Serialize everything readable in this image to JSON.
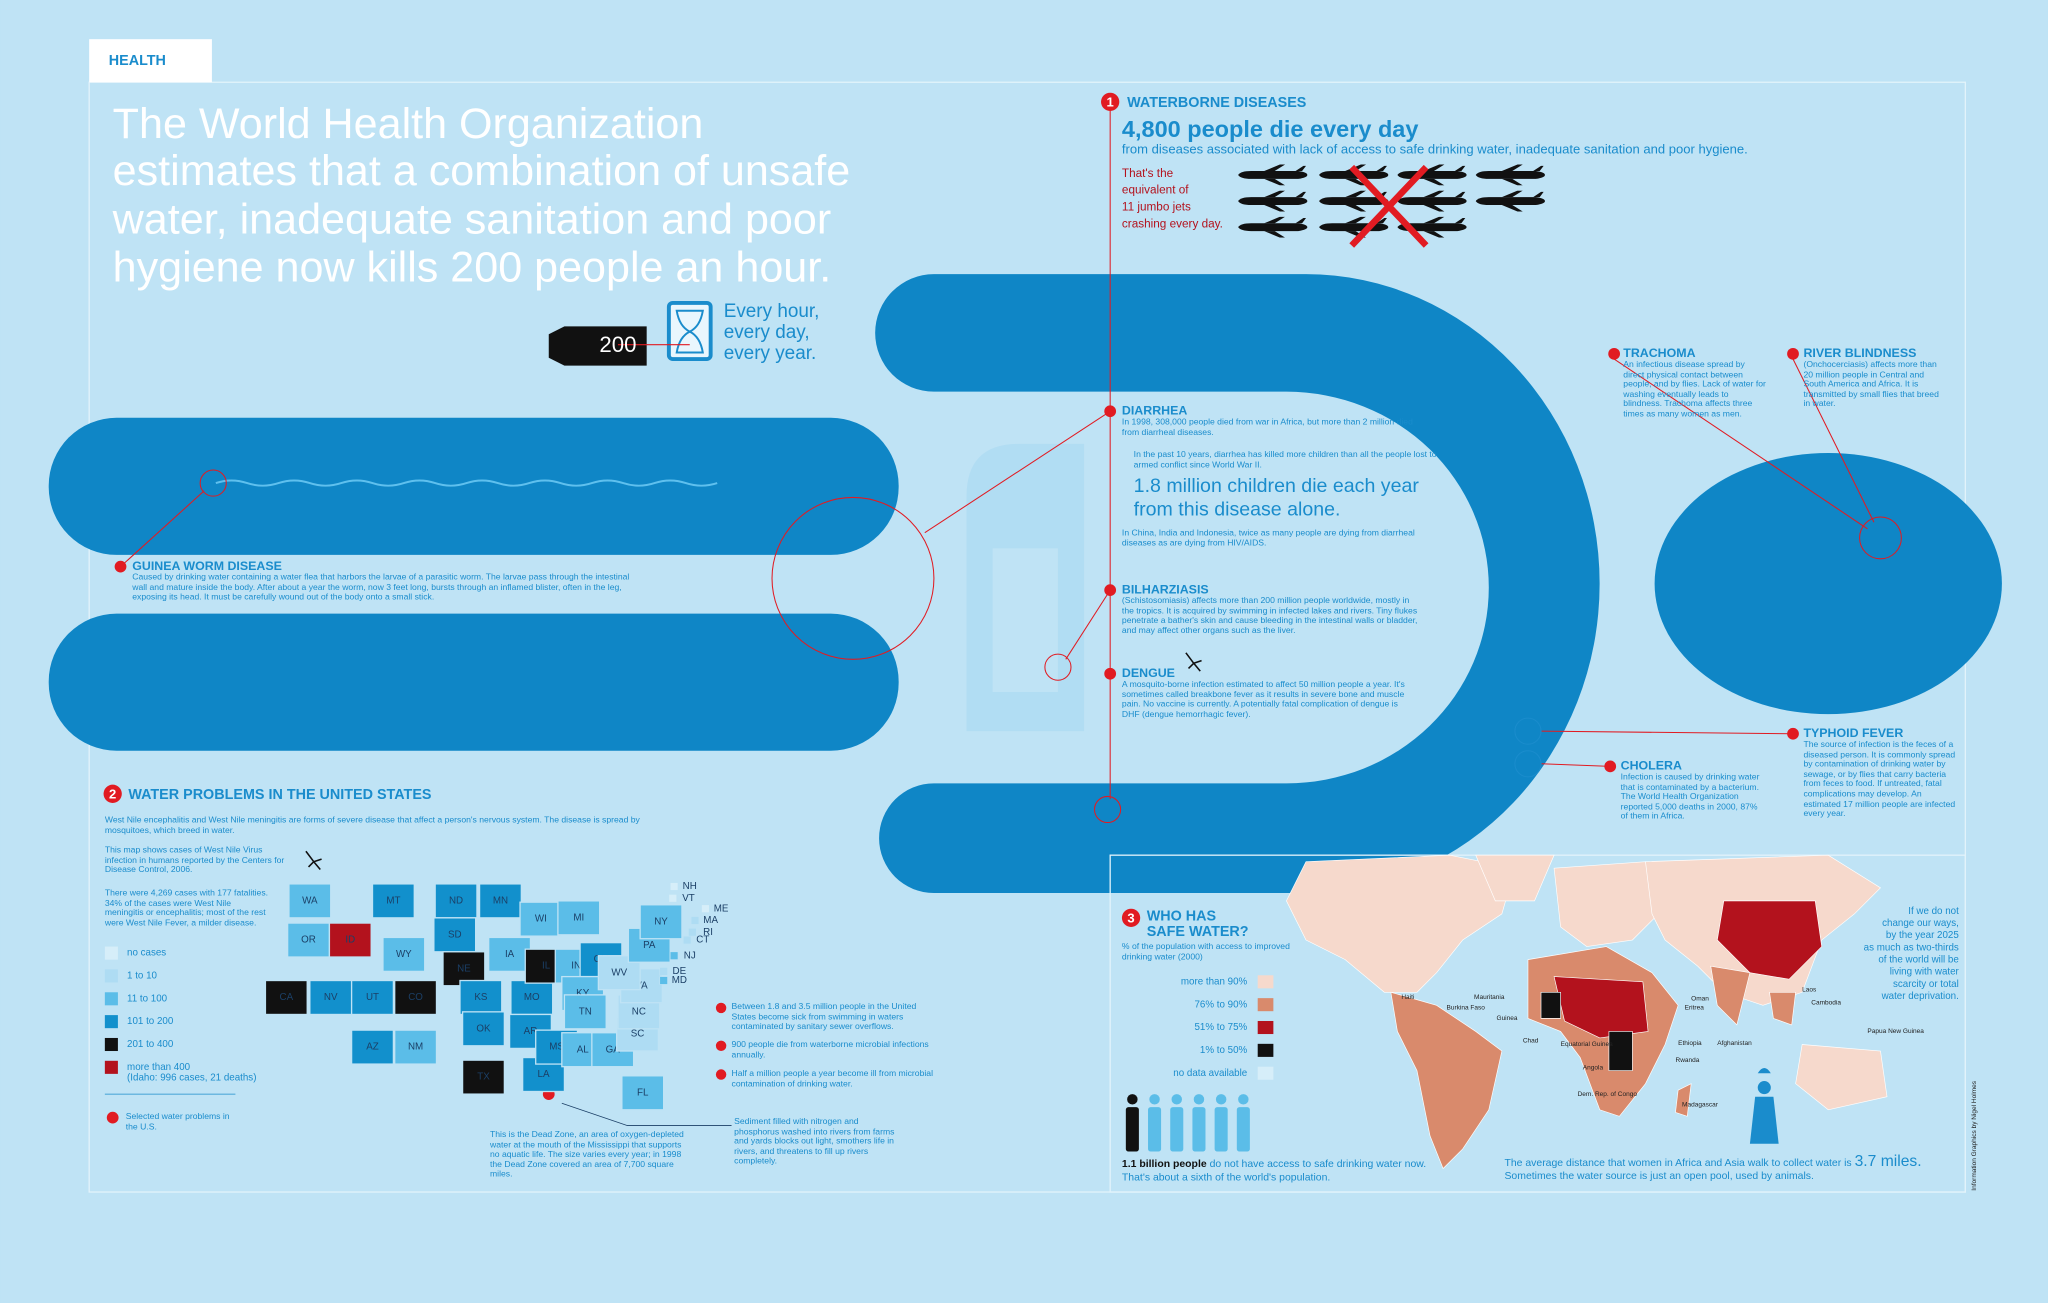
{
  "tab": "HEALTH",
  "intro": {
    "lines": [
      "The World Health Organization",
      "estimates that a combination of unsafe",
      "water, inadequate sanitation and poor",
      "hygiene now kills 200 people an hour."
    ],
    "coffin": "200",
    "hourglass_text": [
      "Every hour,",
      "every day,",
      "every year."
    ]
  },
  "waterborne": {
    "number": "1",
    "heading": "WATERBORNE DISEASES",
    "headline": "4,800 people die every day",
    "subhead": "from diseases associated with lack of access to safe drinking water, inadequate sanitation and poor hygiene.",
    "jets_text": [
      "That's the",
      "equivalent of",
      "11 jumbo jets",
      "crashing every day."
    ]
  },
  "diarrhea": {
    "name": "DIARRHEA",
    "text1": "In 1998, 308,000 people died from war in Africa, but more than 2 million died from diarrheal diseases.",
    "text2": "In the past 10 years, diarrhea has killed more children than all the people lost to armed conflict since World War II.",
    "highlight": "1.8 million children die each year from this disease alone.",
    "text3": "In China, India and Indonesia, twice as many people are dying from diarrheal diseases as are dying from HIV/AIDS."
  },
  "diseases": [
    {
      "name": "GUINEA WORM DISEASE",
      "text": "Caused by drinking water containing a water flea that harbors the larvae of a parasitic worm. The larvae pass through the intestinal wall and mature inside the body. After about a year the worm, now 3 feet long, bursts through an inflamed blister, often in the leg, exposing its head. It must be carefully wound out of the body onto a small stick."
    },
    {
      "name": "BILHARZIASIS",
      "text": "(Schistosomiasis) affects more than 200 million people worldwide, mostly in the tropics. It is acquired by swimming in infected lakes and rivers. Tiny flukes penetrate a bather's skin and cause bleeding in the intestinal walls or bladder, and may affect other organs such as the liver."
    },
    {
      "name": "DENGUE",
      "text": "A mosquito-borne infection estimated to affect 50 million people a year. It's sometimes called breakbone fever as it results in severe bone and muscle pain. No vaccine is currently. A potentially fatal complication of dengue is DHF (dengue hemorrhagic fever)."
    },
    {
      "name": "TRACHOMA",
      "text": "An infectious disease spread by direct physical contact between people, and by flies. Lack of water for washing eventually leads to blindness. Trachoma affects three times as many women as men."
    },
    {
      "name": "RIVER BLINDNESS",
      "text": "(Onchocerciasis) affects more than 20 million people in Central and South America and Africa. It is transmitted by small flies that breed in water."
    },
    {
      "name": "TYPHOID FEVER",
      "text": "The source of infection is the feces of a diseased person. It is commonly spread by contamination of drinking water by sewage, or by flies that carry bacteria from feces to food. If untreated, fatal complications may develop. An estimated 17 million people are infected every year."
    },
    {
      "name": "CHOLERA",
      "text": "Infection is caused by drinking water that is contaminated by a bacterium. The World Health Organization reported 5,000 deaths in 2000, 87% of them in Africa."
    }
  ],
  "us": {
    "number": "2",
    "heading": "WATER PROBLEMS IN THE UNITED STATES",
    "intro": "West Nile encephalitis and West Nile meningitis are forms of severe disease that affect a person's nervous system. The disease is spread by mosquitoes, which breed in water.",
    "map_note": "This map shows cases of West Nile Virus infection in humans reported by the Centers for Disease Control, 2006.",
    "stats": "There were 4,269 cases with 177 fatalities. 34% of the cases were West Nile meningitis or encephalitis; most of the rest were West Nile Fever, a milder disease.",
    "legend": [
      {
        "label": "no cases",
        "color": "#d6eef9"
      },
      {
        "label": "1 to 10",
        "color": "#aedcf3"
      },
      {
        "label": "11 to 100",
        "color": "#5bbde8"
      },
      {
        "label": "101 to 200",
        "color": "#1290cc"
      },
      {
        "label": "201 to 400",
        "color": "#111111"
      },
      {
        "label": "more than 400",
        "note": "(Idaho: 996 cases, 21 deaths)",
        "color": "#b3121d"
      }
    ],
    "states": [
      {
        "label": "WA",
        "color": "#5bbde8"
      },
      {
        "label": "OR",
        "color": "#5bbde8"
      },
      {
        "label": "ID",
        "color": "#b3121d"
      },
      {
        "label": "MT",
        "color": "#1290cc"
      },
      {
        "label": "WY",
        "color": "#5bbde8"
      },
      {
        "label": "CA",
        "color": "#111111"
      },
      {
        "label": "NV",
        "color": "#1290cc"
      },
      {
        "label": "UT",
        "color": "#1290cc"
      },
      {
        "label": "CO",
        "color": "#111111"
      },
      {
        "label": "AZ",
        "color": "#1290cc"
      },
      {
        "label": "NM",
        "color": "#5bbde8"
      },
      {
        "label": "ND",
        "color": "#1290cc"
      },
      {
        "label": "SD",
        "color": "#1290cc"
      },
      {
        "label": "NE",
        "color": "#111111"
      },
      {
        "label": "KS",
        "color": "#1290cc"
      },
      {
        "label": "OK",
        "color": "#1290cc"
      },
      {
        "label": "TX",
        "color": "#111111"
      },
      {
        "label": "MN",
        "color": "#1290cc"
      },
      {
        "label": "IA",
        "color": "#5bbde8"
      },
      {
        "label": "MO",
        "color": "#1290cc"
      },
      {
        "label": "AR",
        "color": "#1290cc"
      },
      {
        "label": "LA",
        "color": "#1290cc"
      },
      {
        "label": "WI",
        "color": "#5bbde8"
      },
      {
        "label": "IL",
        "color": "#111111"
      },
      {
        "label": "MI",
        "color": "#5bbde8"
      },
      {
        "label": "IN",
        "color": "#5bbde8"
      },
      {
        "label": "OH",
        "color": "#1290cc"
      },
      {
        "label": "KY",
        "color": "#5bbde8"
      },
      {
        "label": "TN",
        "color": "#5bbde8"
      },
      {
        "label": "MS",
        "color": "#1290cc"
      },
      {
        "label": "AL",
        "color": "#5bbde8"
      },
      {
        "label": "GA",
        "color": "#5bbde8"
      },
      {
        "label": "FL",
        "color": "#5bbde8"
      },
      {
        "label": "SC",
        "color": "#aedcf3"
      },
      {
        "label": "NC",
        "color": "#aedcf3"
      },
      {
        "label": "VA",
        "color": "#aedcf3"
      },
      {
        "label": "WV",
        "color": "#aedcf3"
      },
      {
        "label": "PA",
        "color": "#5bbde8"
      },
      {
        "label": "NY",
        "color": "#5bbde8"
      },
      {
        "label": "NJ",
        "color": "#5bbde8"
      },
      {
        "label": "DE",
        "color": "#aedcf3"
      },
      {
        "label": "MD",
        "color": "#5bbde8"
      },
      {
        "label": "CT",
        "color": "#aedcf3"
      },
      {
        "label": "RI",
        "color": "#aedcf3"
      },
      {
        "label": "MA",
        "color": "#aedcf3"
      },
      {
        "label": "VT",
        "color": "#d6eef9"
      },
      {
        "label": "NH",
        "color": "#d6eef9"
      },
      {
        "label": "ME",
        "color": "#d6eef9"
      }
    ],
    "problems": [
      "Between 1.8 and 3.5 million people in the United States become sick from swimming in waters contaminated by sanitary sewer overflows.",
      "900 people die from waterborne microbial infections annually.",
      "Half a million people a year become ill from microbial contamination of drinking water."
    ],
    "selected": "Selected water problems in the U.S.",
    "dead_zone": "This is the Dead Zone, an area of oxygen-depleted water at the mouth of the Mississippi that supports no aquatic life. The size varies every year; in 1998 the Dead Zone covered an area of 7,700 square miles.",
    "sediment": "Sediment filled with nitrogen and phosphorus washed into rivers from farms and yards blocks out light, smothers life in rivers, and threatens to fill up rivers completely."
  },
  "safe_water": {
    "number": "3",
    "heading": [
      "WHO HAS",
      "SAFE WATER?"
    ],
    "subhead": "% of the population with access to improved drinking water (2000)",
    "legend": [
      {
        "label": "more than 90%",
        "color": "#f6d9cc"
      },
      {
        "label": "76% to 90%",
        "color": "#d98a6c"
      },
      {
        "label": "51% to 75%",
        "color": "#b3121d"
      },
      {
        "label": "1% to 50%",
        "color": "#111111"
      },
      {
        "label": "no data available",
        "color": "#d6eef9"
      }
    ],
    "billion_bold": "1.1 billion people",
    "billion_text": "do not have access to safe drinking water now. That's about a sixth of the world's population.",
    "countries": [
      "Haiti",
      "Mauritania",
      "Burkina Faso",
      "Guinea",
      "Chad",
      "Equatorial Guinea",
      "Angola",
      "Dem. Rep. of Congo",
      "Oman",
      "Eritrea",
      "Ethiopia",
      "Afghanistan",
      "Rwanda",
      "Madagascar",
      "Laos",
      "Cambodia",
      "Papua New Guinea"
    ],
    "future": [
      "If we do not",
      "change our ways,",
      "by the year 2025",
      "as much as two-thirds",
      "of the world will be",
      "living with water",
      "scarcity or total",
      "water deprivation."
    ],
    "walk_text": "The average distance that women in Africa and Asia walk to collect water is",
    "walk_value": "3.7 miles.",
    "walk_text2": "Sometimes the water source is just an open pool, used by animals."
  },
  "credit": "Information Graphics by Nigel Holmes"
}
